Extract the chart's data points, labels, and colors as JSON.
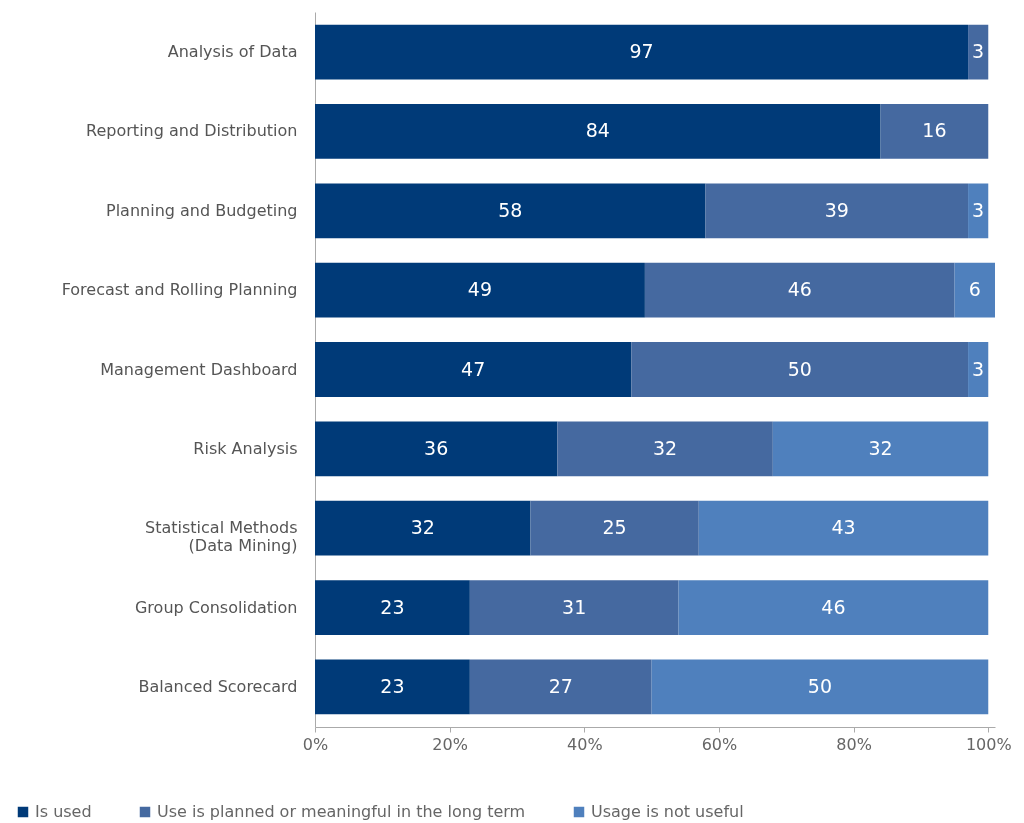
{
  "chart_data": {
    "type": "bar",
    "orientation": "horizontal",
    "stacked": true,
    "data_labels": true,
    "legend": "bottom",
    "grid": false,
    "categories": [
      "Analysis of Data",
      "Reporting and Distribution",
      "Planning and Budgeting",
      "Forecast and Rolling Planning",
      "Management Dashboard",
      "Risk Analysis",
      "Statistical Methods\n(Data Mining)",
      "Group Consolidation",
      "Balanced Scorecard"
    ],
    "xlim": [
      0,
      101
    ],
    "xticks": [
      {
        "value": 0,
        "label": "0%"
      },
      {
        "value": 20,
        "label": "20%"
      },
      {
        "value": 40,
        "label": "40%"
      },
      {
        "value": 60,
        "label": "60%"
      },
      {
        "value": 80,
        "label": "80%"
      },
      {
        "value": 100,
        "label": "100%"
      }
    ],
    "series": [
      {
        "name": "Is used",
        "color": "#003a78",
        "values": [
          97,
          84,
          58,
          49,
          47,
          36,
          32,
          23,
          23
        ]
      },
      {
        "name": "Use is planned or meaningful in the long term",
        "color": "#4569a0",
        "values": [
          3,
          16,
          39,
          46,
          50,
          32,
          25,
          31,
          27
        ]
      },
      {
        "name": "Usage is not useful",
        "color": "#4f80bd",
        "values": [
          null,
          null,
          3,
          6,
          3,
          32,
          43,
          46,
          50
        ]
      }
    ]
  }
}
